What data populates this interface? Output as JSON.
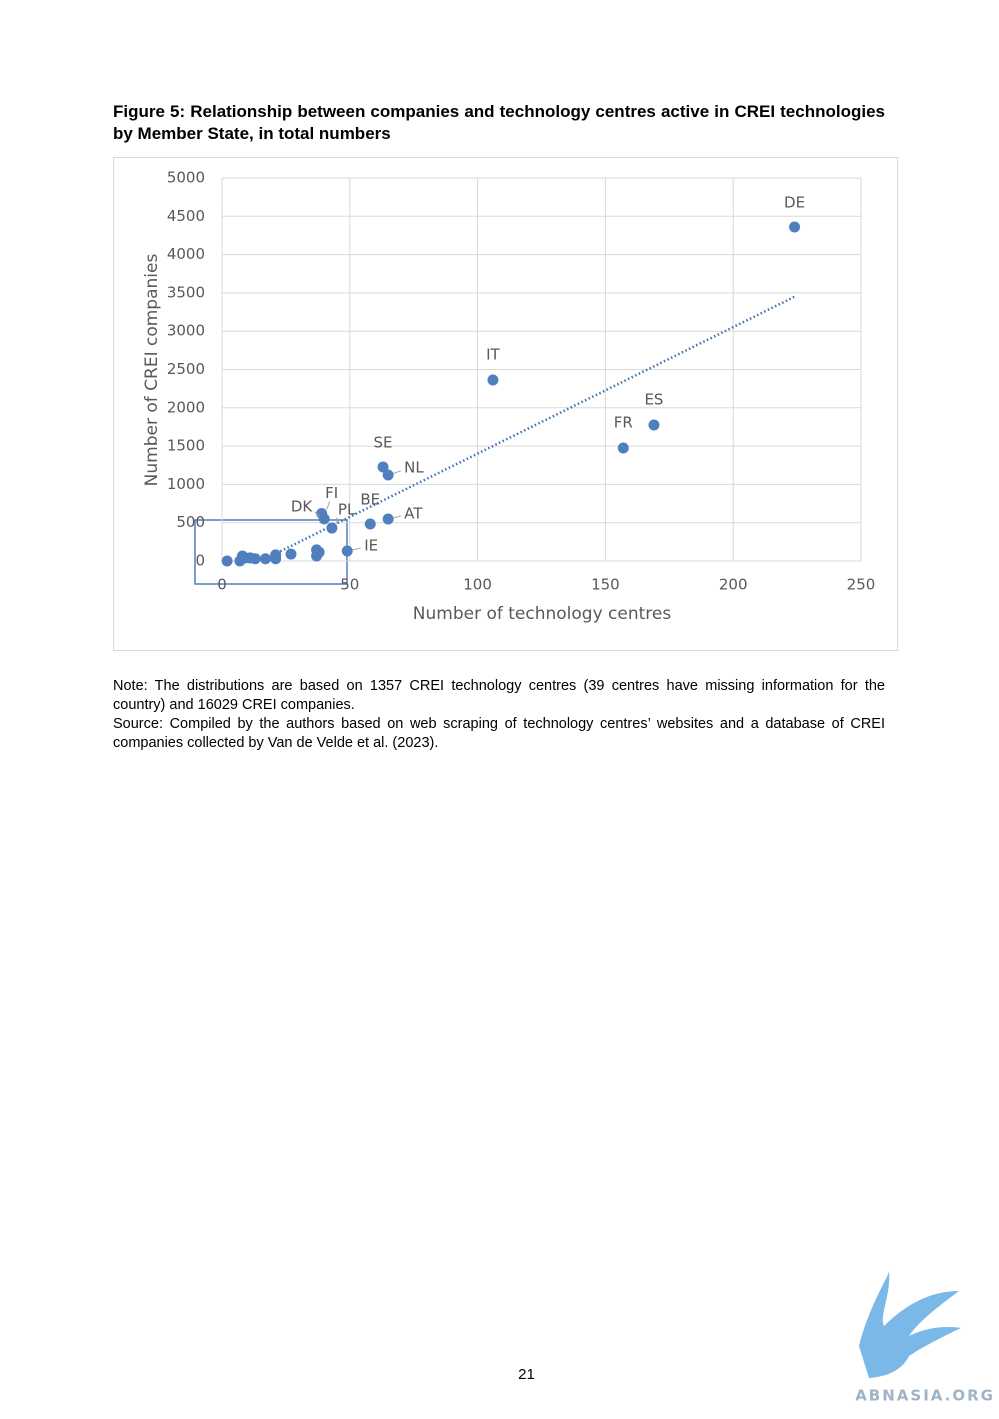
{
  "figure_title": "Figure 5: Relationship between companies and technology centres active in CREI technologies by Member State, in total numbers",
  "chart_data": {
    "type": "scatter",
    "x_label": "Number of technology centres",
    "y_label": "Number of CREI companies",
    "labels": [
      "DE",
      "IT",
      "ES",
      "FR",
      "SE",
      "NL",
      "AT",
      "BE",
      "FI",
      "DK",
      "PL",
      "IE",
      null,
      null,
      null,
      null,
      null,
      null,
      null,
      null,
      null,
      null,
      null,
      null,
      null
    ],
    "x": [
      224,
      106,
      169,
      157,
      63,
      65,
      65,
      58,
      39,
      40,
      43,
      49,
      2,
      7,
      8,
      9,
      11,
      13,
      17,
      21,
      21,
      27,
      37,
      37,
      38
    ],
    "values": [
      4360,
      2363,
      1775,
      1475,
      1227,
      1123,
      548,
      483,
      620,
      550,
      430,
      130,
      0,
      0,
      65,
      40,
      40,
      30,
      30,
      30,
      80,
      90,
      145,
      65,
      115
    ],
    "color": "#4f7fbd",
    "trendline": {
      "x": [
        20,
        224
      ],
      "y": [
        80,
        3450
      ],
      "color": "#3d6fb0"
    },
    "xlim": [
      0,
      250
    ],
    "xticks": [
      0,
      50,
      100,
      150,
      200,
      250
    ],
    "ylim": [
      0,
      5000
    ],
    "yticks": [
      0,
      500,
      1000,
      1500,
      2000,
      2500,
      3000,
      3500,
      4000,
      4500,
      5000
    ],
    "grid": true
  },
  "note": "Note: The distributions are based on 1357 CREI technology centres (39 centres have missing information for the country) and 16029 CREI companies.",
  "source": "Source: Compiled by the authors based on web scraping of technology centres’ websites and a database of CREI companies collected by Van de Velde et al. (2023).",
  "page_number": "21",
  "watermark": "ABNASIA.ORG"
}
